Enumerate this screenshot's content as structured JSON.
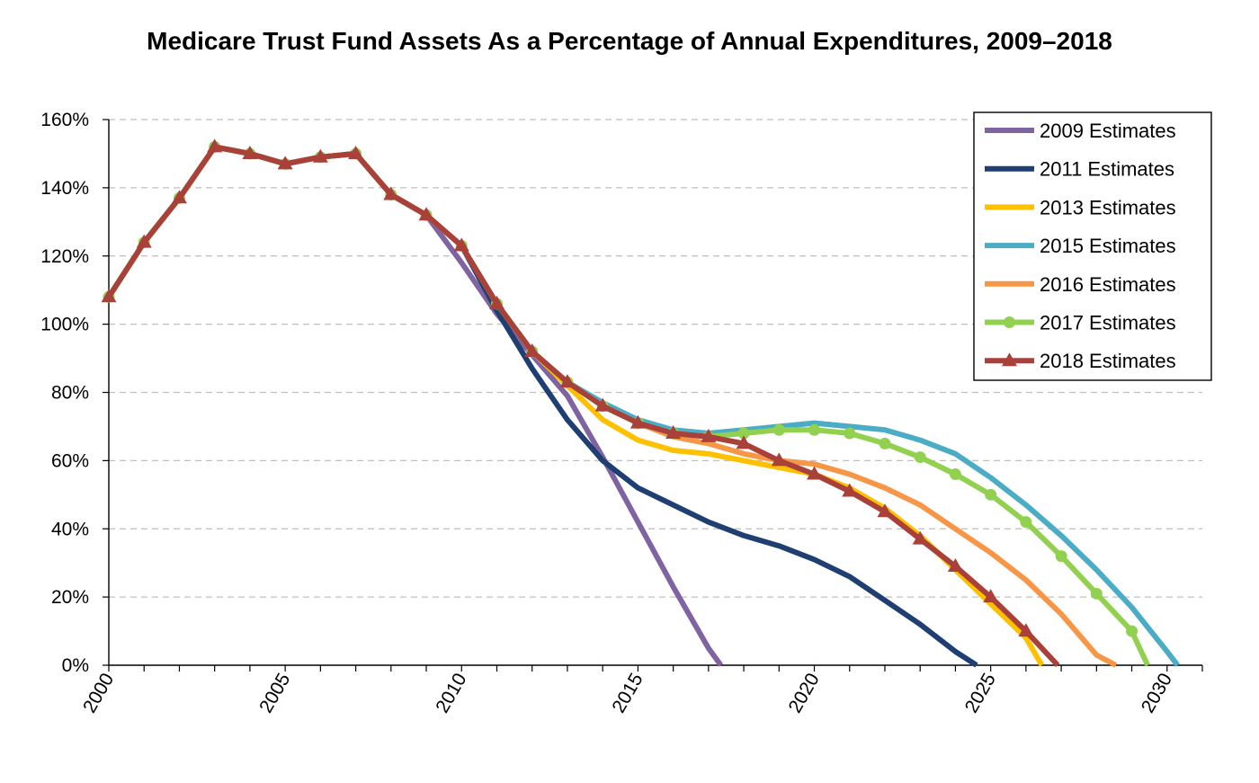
{
  "chart_data": {
    "type": "line",
    "title": "Medicare Trust Fund Assets As a Percentage of Annual Expenditures, 2009–2018",
    "xlabel": "",
    "ylabel": "",
    "xlim": [
      2000,
      2031
    ],
    "ylim": [
      0,
      160
    ],
    "x_ticks": [
      "2000",
      "2005",
      "2010",
      "2015",
      "2020",
      "2025",
      "2030"
    ],
    "y_ticks": [
      "0%",
      "20%",
      "40%",
      "60%",
      "80%",
      "100%",
      "120%",
      "140%",
      "160%"
    ],
    "grid": "horizontal dashed",
    "legend_position": "top-right",
    "series": [
      {
        "name": "2009 Estimates",
        "color": "#8064A2",
        "marker": "none",
        "x": [
          2000,
          2001,
          2002,
          2003,
          2004,
          2005,
          2006,
          2007,
          2008,
          2009,
          2010,
          2011,
          2012,
          2013,
          2014,
          2015,
          2016,
          2017,
          2017.35
        ],
        "values": [
          108,
          124,
          137,
          152,
          150,
          147,
          149,
          150,
          138,
          132,
          118,
          103,
          91,
          79,
          61,
          42,
          23,
          5,
          0
        ]
      },
      {
        "name": "2011 Estimates",
        "color": "#1F3F73",
        "marker": "none",
        "x": [
          2000,
          2001,
          2002,
          2003,
          2004,
          2005,
          2006,
          2007,
          2008,
          2009,
          2010,
          2011,
          2012,
          2013,
          2014,
          2015,
          2016,
          2017,
          2018,
          2019,
          2020,
          2021,
          2022,
          2023,
          2024,
          2024.6
        ],
        "values": [
          108,
          124,
          137,
          152,
          150,
          147,
          149,
          150,
          138,
          132,
          123,
          104,
          87,
          72,
          60,
          52,
          47,
          42,
          38,
          35,
          31,
          26,
          19,
          12,
          4,
          0
        ]
      },
      {
        "name": "2013 Estimates",
        "color": "#FFC000",
        "marker": "none",
        "x": [
          2000,
          2001,
          2002,
          2003,
          2004,
          2005,
          2006,
          2007,
          2008,
          2009,
          2010,
          2011,
          2012,
          2013,
          2014,
          2015,
          2016,
          2017,
          2018,
          2019,
          2020,
          2021,
          2022,
          2023,
          2024,
          2025,
          2026,
          2026.45
        ],
        "values": [
          108,
          124,
          137,
          152,
          150,
          147,
          149,
          150,
          138,
          132,
          123,
          106,
          92,
          82,
          72,
          66,
          63,
          62,
          60,
          58,
          56,
          52,
          46,
          38,
          28,
          18,
          8,
          0
        ]
      },
      {
        "name": "2015 Estimates",
        "color": "#4BACC6",
        "marker": "none",
        "x": [
          2000,
          2001,
          2002,
          2003,
          2004,
          2005,
          2006,
          2007,
          2008,
          2009,
          2010,
          2011,
          2012,
          2013,
          2014,
          2015,
          2016,
          2017,
          2018,
          2019,
          2020,
          2021,
          2022,
          2023,
          2024,
          2025,
          2026,
          2027,
          2028,
          2029,
          2030,
          2030.3
        ],
        "values": [
          108,
          124,
          137,
          152,
          150,
          147,
          149,
          150,
          138,
          132,
          123,
          106,
          92,
          83,
          77,
          72,
          69,
          68,
          69,
          70,
          71,
          70,
          69,
          66,
          62,
          55,
          47,
          38,
          28,
          17,
          4,
          0
        ]
      },
      {
        "name": "2016 Estimates",
        "color": "#F79646",
        "marker": "none",
        "x": [
          2000,
          2001,
          2002,
          2003,
          2004,
          2005,
          2006,
          2007,
          2008,
          2009,
          2010,
          2011,
          2012,
          2013,
          2014,
          2015,
          2016,
          2017,
          2018,
          2019,
          2020,
          2021,
          2022,
          2023,
          2024,
          2025,
          2026,
          2027,
          2028,
          2028.55
        ],
        "values": [
          108,
          124,
          137,
          152,
          150,
          147,
          149,
          150,
          138,
          132,
          123,
          106,
          92,
          83,
          76,
          71,
          67,
          65,
          62,
          60,
          59,
          56,
          52,
          47,
          40,
          33,
          25,
          15,
          3,
          0
        ]
      },
      {
        "name": "2017 Estimates",
        "color": "#92D050",
        "marker": "circle",
        "x": [
          2000,
          2001,
          2002,
          2003,
          2004,
          2005,
          2006,
          2007,
          2008,
          2009,
          2010,
          2011,
          2012,
          2013,
          2014,
          2015,
          2016,
          2017,
          2018,
          2019,
          2020,
          2021,
          2022,
          2023,
          2024,
          2025,
          2026,
          2027,
          2028,
          2029,
          2029.45
        ],
        "values": [
          108,
          124,
          137,
          152,
          150,
          147,
          149,
          150,
          138,
          132,
          123,
          106,
          92,
          83,
          76,
          71,
          68,
          67,
          68,
          69,
          69,
          68,
          65,
          61,
          56,
          50,
          42,
          32,
          21,
          10,
          0
        ]
      },
      {
        "name": "2018 Estimates",
        "color": "#A9403A",
        "marker": "triangle",
        "x": [
          2000,
          2001,
          2002,
          2003,
          2004,
          2005,
          2006,
          2007,
          2008,
          2009,
          2010,
          2011,
          2012,
          2013,
          2014,
          2015,
          2016,
          2017,
          2018,
          2019,
          2020,
          2021,
          2022,
          2023,
          2024,
          2025,
          2026,
          2026.9
        ],
        "values": [
          108,
          124,
          137,
          152,
          150,
          147,
          149,
          150,
          138,
          132,
          123,
          106,
          92,
          83,
          76,
          71,
          68,
          67,
          65,
          60,
          56,
          51,
          45,
          37,
          29,
          20,
          10,
          0
        ]
      }
    ]
  }
}
